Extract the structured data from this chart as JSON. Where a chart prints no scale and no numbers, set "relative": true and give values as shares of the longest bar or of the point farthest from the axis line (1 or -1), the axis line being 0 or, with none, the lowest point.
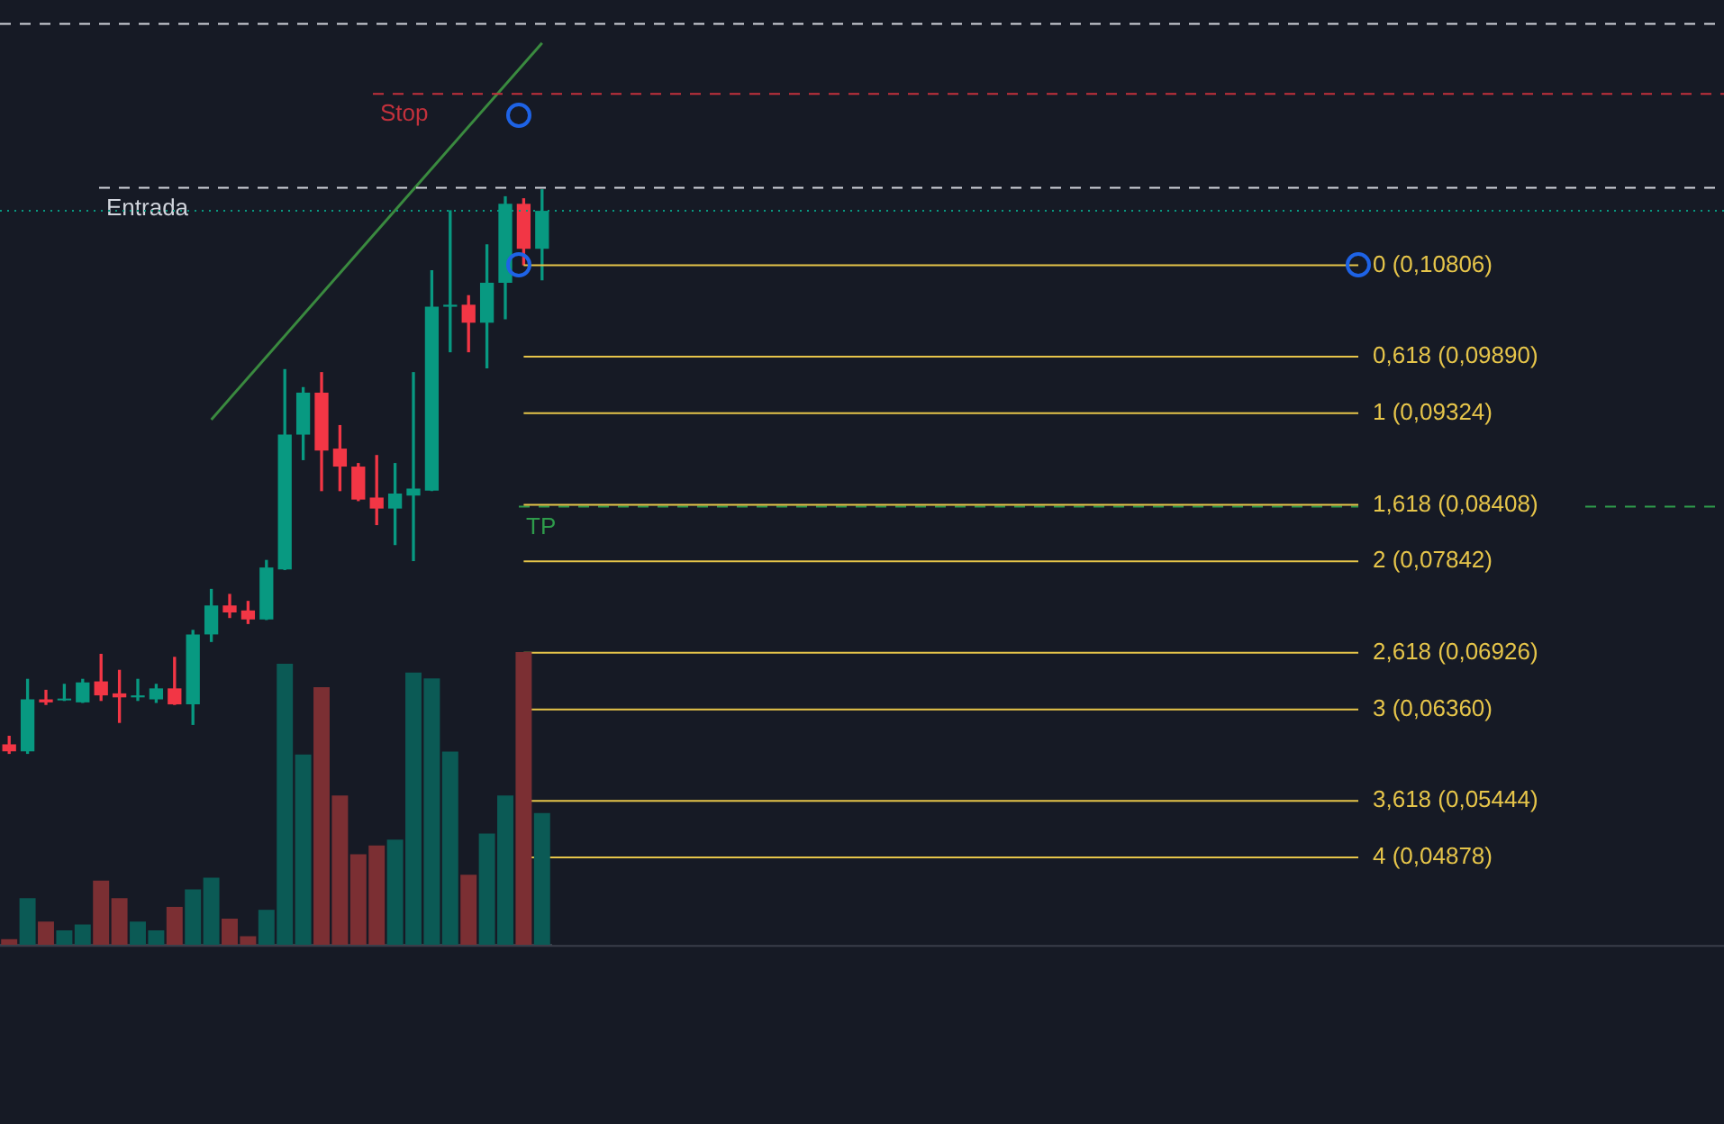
{
  "chart_data": [
    {
      "type": "candlestick",
      "categories": [
        null,
        null,
        null,
        null,
        null,
        null,
        null,
        null,
        null,
        null,
        null,
        null,
        null,
        null,
        null,
        null,
        null,
        null,
        null,
        null,
        null,
        null,
        null,
        null,
        null,
        null,
        null,
        null,
        null,
        null
      ],
      "ohlc": [
        [
          0.0601,
          0.0609,
          0.0592,
          0.0594
        ],
        [
          0.0594,
          0.0666,
          0.0592,
          0.0646
        ],
        [
          0.0646,
          0.0655,
          0.0641,
          0.0643
        ],
        [
          0.0645,
          0.0661,
          0.0645,
          0.0646
        ],
        [
          0.0643,
          0.0666,
          0.0643,
          0.0663
        ],
        [
          0.0664,
          0.0691,
          0.0645,
          0.065
        ],
        [
          0.0652,
          0.0675,
          0.0623,
          0.0648
        ],
        [
          0.0648,
          0.0666,
          0.0645,
          0.065
        ],
        [
          0.0646,
          0.0661,
          0.0643,
          0.0657
        ],
        [
          0.0657,
          0.0688,
          0.0641,
          0.0641
        ],
        [
          0.0641,
          0.0715,
          0.0621,
          0.0711
        ],
        [
          0.0711,
          0.0756,
          0.0704,
          0.074
        ],
        [
          0.074,
          0.0751,
          0.0728,
          0.0733
        ],
        [
          0.0735,
          0.0744,
          0.0722,
          0.0726
        ],
        [
          0.0726,
          0.0785,
          0.0726,
          0.0778
        ],
        [
          0.0776,
          0.0976,
          0.0776,
          0.0911
        ],
        [
          0.0911,
          0.0958,
          0.0886,
          0.0953
        ],
        [
          0.0953,
          0.0973,
          0.0855,
          0.0895
        ],
        [
          0.0897,
          0.092,
          0.0855,
          0.0879
        ],
        [
          0.0879,
          0.0882,
          0.0845,
          0.0846
        ],
        [
          0.0848,
          0.089,
          0.0821,
          0.0837
        ],
        [
          0.0837,
          0.0882,
          0.0801,
          0.0852
        ],
        [
          0.085,
          0.0973,
          0.0785,
          0.0857
        ],
        [
          0.0855,
          0.1075,
          0.0855,
          0.1039
        ],
        [
          0.1039,
          0.1135,
          0.0994,
          0.1041
        ],
        [
          0.1041,
          0.105,
          0.0994,
          0.1023
        ],
        [
          0.1023,
          0.1101,
          0.0978,
          0.1063
        ],
        [
          0.1063,
          0.1149,
          0.1027,
          0.1142
        ],
        [
          0.1142,
          0.1147,
          0.1081,
          0.1097
        ],
        [
          0.1097,
          0.1156,
          0.1066,
          0.1135
        ]
      ],
      "colors": [
        "#f23645",
        "#089981",
        "#f23645",
        "#089981",
        "#089981",
        "#f23645",
        "#f23645",
        "#089981",
        "#089981",
        "#f23645",
        "#089981",
        "#089981",
        "#f23645",
        "#f23645",
        "#089981",
        "#089981",
        "#089981",
        "#f23645",
        "#f23645",
        "#f23645",
        "#f23645",
        "#089981",
        "#089981",
        "#089981",
        "#089981",
        "#f23645",
        "#089981",
        "#089981",
        "#f23645",
        "#089981"
      ],
      "series": [
        {
          "type": "line",
          "color": "#3a8a3f",
          "values": [
            null,
            null,
            null,
            null,
            null,
            null,
            null,
            null,
            null,
            null,
            null,
            0.0926,
            null,
            null,
            null,
            null,
            null,
            null,
            null,
            null,
            null,
            null,
            null,
            null,
            null,
            null,
            null,
            null,
            null,
            0.1303
          ]
        }
      ],
      "ylim": [
        0.0221,
        0.1346
      ],
      "tick_labels": false,
      "marker": "none",
      "ref_lines": [
        {
          "axis": "y",
          "value": 0.1322,
          "color": "#d1d4dc",
          "line_style": "dashed"
        },
        {
          "axis": "y",
          "value": 0.1252,
          "label": "Stop",
          "color": "#c2313c",
          "line_style": "dashed"
        },
        {
          "axis": "y",
          "value": 0.1158,
          "label": "Entrada",
          "color": "#d1d4dc",
          "line_style": "dashed"
        },
        {
          "axis": "y",
          "value": 0.1135,
          "color": "#089981",
          "line_style": "dotted"
        },
        {
          "axis": "y",
          "value": 0.0839,
          "label": "TP",
          "color": "#2e9b4b",
          "line_style": "dashed"
        },
        {
          "axis": "y",
          "value": 0.10806,
          "label": "0 (0,10806)",
          "color": "#e6c54a",
          "line_style": "solid"
        },
        {
          "axis": "y",
          "value": 0.0989,
          "label": "0,618 (0,09890)",
          "color": "#e6c54a",
          "line_style": "solid"
        },
        {
          "axis": "y",
          "value": 0.09324,
          "label": "1 (0,09324)",
          "color": "#e6c54a",
          "line_style": "solid"
        },
        {
          "axis": "y",
          "value": 0.08408,
          "label": "1,618 (0,08408)",
          "color": "#e6c54a",
          "line_style": "solid"
        },
        {
          "axis": "y",
          "value": 0.07842,
          "label": "2 (0,07842)",
          "color": "#e6c54a",
          "line_style": "solid"
        },
        {
          "axis": "y",
          "value": 0.06926,
          "label": "2,618 (0,06926)",
          "color": "#e6c54a",
          "line_style": "solid"
        },
        {
          "axis": "y",
          "value": 0.0636,
          "label": "3 (0,06360)",
          "color": "#e6c54a",
          "line_style": "solid"
        },
        {
          "axis": "y",
          "value": 0.05444,
          "label": "3,618 (0,05444)",
          "color": "#e6c54a",
          "line_style": "solid"
        },
        {
          "axis": "y",
          "value": 0.04878,
          "label": "4 (0,04878)",
          "color": "#e6c54a",
          "line_style": "solid"
        }
      ]
    },
    {
      "type": "bar",
      "relative": true,
      "categories": [
        null,
        null,
        null,
        null,
        null,
        null,
        null,
        null,
        null,
        null,
        null,
        null,
        null,
        null,
        null,
        null,
        null,
        null,
        null,
        null,
        null,
        null,
        null,
        null,
        null,
        null,
        null,
        null,
        null,
        null
      ],
      "values": [
        0.02,
        0.16,
        0.08,
        0.05,
        0.07,
        0.22,
        0.16,
        0.08,
        0.05,
        0.13,
        0.19,
        0.23,
        0.09,
        0.03,
        0.12,
        0.96,
        0.65,
        0.88,
        0.51,
        0.31,
        0.34,
        0.36,
        0.93,
        0.91,
        0.66,
        0.24,
        0.38,
        0.51,
        1,
        0.45
      ],
      "colors": [
        "#7b2f33",
        "#0b5a55",
        "#7b2f33",
        "#0b5a55",
        "#0b5a55",
        "#7b2f33",
        "#7b2f33",
        "#0b5a55",
        "#0b5a55",
        "#7b2f33",
        "#0b5a55",
        "#0b5a55",
        "#7b2f33",
        "#7b2f33",
        "#0b5a55",
        "#0b5a55",
        "#0b5a55",
        "#7b2f33",
        "#7b2f33",
        "#7b2f33",
        "#7b2f33",
        "#0b5a55",
        "#0b5a55",
        "#0b5a55",
        "#0b5a55",
        "#7b2f33",
        "#0b5a55",
        "#0b5a55",
        "#7b2f33",
        "#0b5a55"
      ]
    }
  ]
}
